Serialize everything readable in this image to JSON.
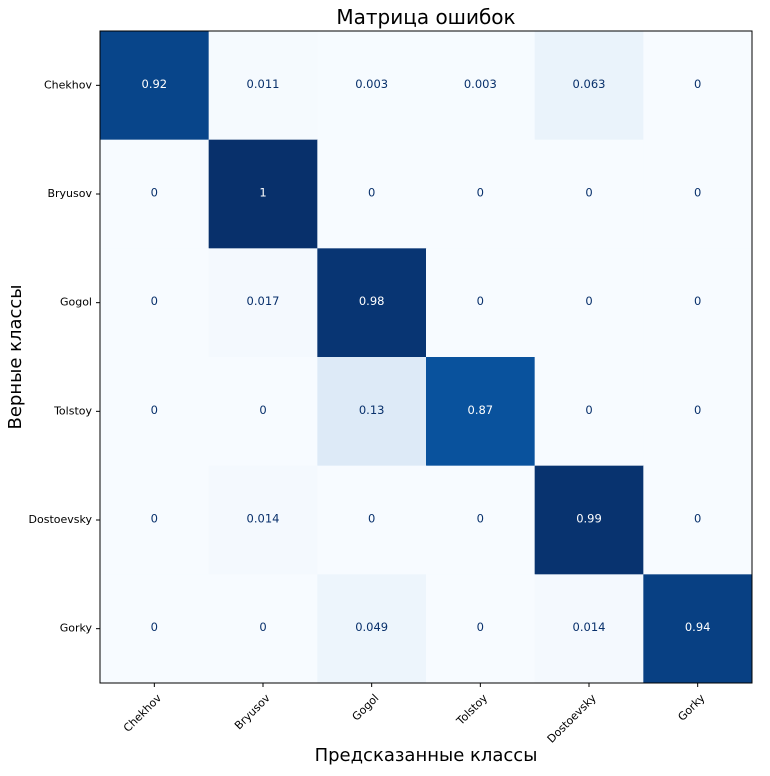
{
  "chart_data": {
    "type": "heatmap",
    "title": "Матрица ошибок",
    "xlabel": "Предсказанные классы",
    "ylabel": "Верные классы",
    "x_categories": [
      "Chekhov",
      "Bryusov",
      "Gogol",
      "Tolstoy",
      "Dostoevsky",
      "Gorky"
    ],
    "y_categories": [
      "Chekhov",
      "Bryusov",
      "Gogol",
      "Tolstoy",
      "Dostoevsky",
      "Gorky"
    ],
    "values": [
      [
        0.92,
        0.011,
        0.003,
        0.003,
        0.063,
        0
      ],
      [
        0,
        1,
        0,
        0,
        0,
        0
      ],
      [
        0,
        0.017,
        0.98,
        0,
        0,
        0
      ],
      [
        0,
        0,
        0.13,
        0.87,
        0,
        0
      ],
      [
        0,
        0.014,
        0,
        0,
        0.99,
        0
      ],
      [
        0,
        0,
        0.049,
        0,
        0.014,
        0.94
      ]
    ],
    "value_labels": [
      [
        "0.92",
        "0.011",
        "0.003",
        "0.003",
        "0.063",
        "0"
      ],
      [
        "0",
        "1",
        "0",
        "0",
        "0",
        "0"
      ],
      [
        "0",
        "0.017",
        "0.98",
        "0",
        "0",
        "0"
      ],
      [
        "0",
        "0",
        "0.13",
        "0.87",
        "0",
        "0"
      ],
      [
        "0",
        "0.014",
        "0",
        "0",
        "0.99",
        "0"
      ],
      [
        "0",
        "0",
        "0.049",
        "0",
        "0.014",
        "0.94"
      ]
    ],
    "vmin": 0,
    "vmax": 1,
    "colormap": "Blues",
    "grid": false,
    "x_tick_rotation": 45
  },
  "colors": {
    "cmap_low": "#f7fbff",
    "cmap_high": "#08306b",
    "text_on_dark": "#ffffff",
    "text_on_light": "#08306b",
    "axis": "#000000"
  }
}
